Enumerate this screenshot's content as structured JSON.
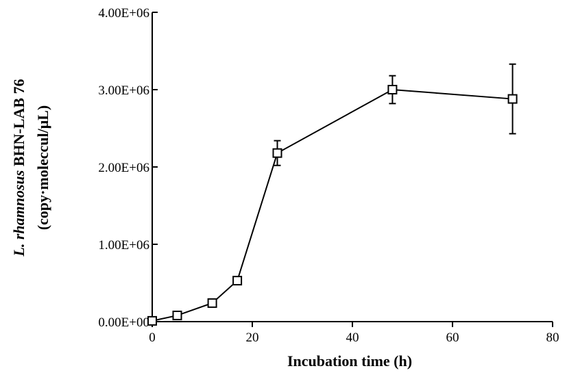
{
  "chart_data": {
    "type": "line",
    "title": "",
    "xlabel": "Incubation time (h)",
    "ylabel_italic": "L. rhamnosus",
    "ylabel_rest": " BHN-LAB 76",
    "ylabel_line2": "(copy·moleccul/μL)",
    "xlim": [
      0,
      80
    ],
    "ylim": [
      0,
      4000000
    ],
    "x_ticks": [
      0,
      20,
      40,
      60,
      80
    ],
    "x_tick_labels": [
      "0",
      "20",
      "40",
      "60",
      "80"
    ],
    "y_ticks": [
      0,
      1000000,
      2000000,
      3000000,
      4000000
    ],
    "y_tick_labels": [
      "0.00E+00",
      "1.00E+06",
      "2.00E+06",
      "3.00E+06",
      "4.00E+06"
    ],
    "grid": false,
    "legend": "none",
    "series": [
      {
        "marker": "open-square",
        "x": [
          0,
          5,
          12,
          17,
          25,
          48,
          72
        ],
        "y": [
          10000,
          80000,
          240000,
          530000,
          2180000,
          3000000,
          2880000
        ],
        "err": [
          10000,
          20000,
          30000,
          50000,
          160000,
          180000,
          450000
        ]
      }
    ]
  }
}
